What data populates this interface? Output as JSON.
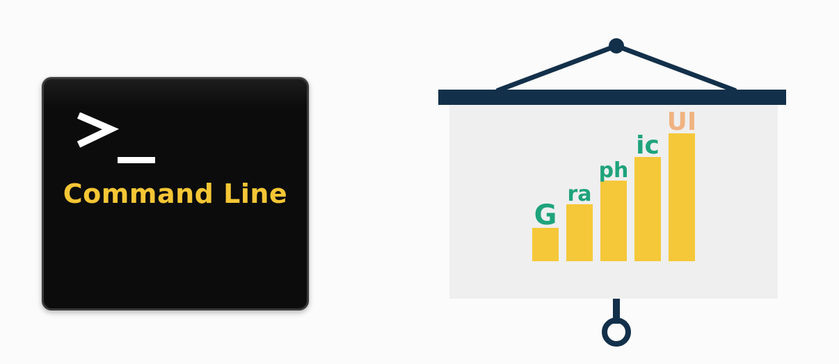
{
  "terminal": {
    "title": "Command Line",
    "prompt_icon": "terminal-prompt-icon",
    "text_color": "#f5c635",
    "background_color": "#0c0c0c"
  },
  "projector": {
    "icon": "projector-screen-icon",
    "frame_color": "#13304a",
    "screen_color": "#efefef",
    "bar_color": "#f5c839",
    "label_color": "#1ea37c",
    "accent_label_color": "#f0b382",
    "bars": [
      {
        "label": "G",
        "value": 1
      },
      {
        "label": "ra",
        "value": 2
      },
      {
        "label": "ph",
        "value": 3
      },
      {
        "label": "ic",
        "value": 4
      },
      {
        "label": "UI",
        "value": 5
      }
    ]
  }
}
